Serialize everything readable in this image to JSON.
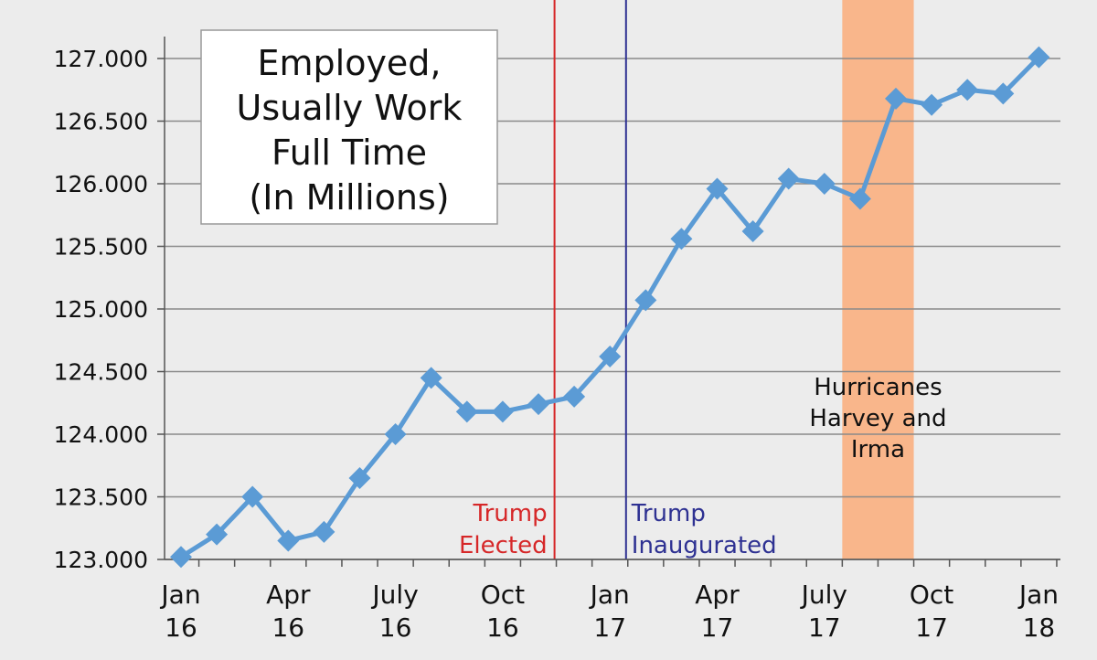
{
  "chart_data": {
    "type": "line",
    "title": [
      "Employed,",
      "Usually Work",
      "Full Time",
      "(In Millions)"
    ],
    "xlabel": "",
    "ylabel": "",
    "ylim": [
      123.0,
      127.0
    ],
    "grid": true,
    "y_ticks": [
      "123.000",
      "123.500",
      "124.000",
      "124.500",
      "125.000",
      "125.500",
      "126.000",
      "126.500",
      "127.000"
    ],
    "x_ticks": [
      {
        "month": 0,
        "line1": "Jan",
        "line2": "16"
      },
      {
        "month": 3,
        "line1": "Apr",
        "line2": "16"
      },
      {
        "month": 6,
        "line1": "July",
        "line2": "16"
      },
      {
        "month": 9,
        "line1": "Oct",
        "line2": "16"
      },
      {
        "month": 12,
        "line1": "Jan",
        "line2": "17"
      },
      {
        "month": 15,
        "line1": "Apr",
        "line2": "17"
      },
      {
        "month": 18,
        "line1": "July",
        "line2": "17"
      },
      {
        "month": 21,
        "line1": "Oct",
        "line2": "17"
      },
      {
        "month": 24,
        "line1": "Jan",
        "line2": "18"
      }
    ],
    "categories": [
      "Jan 16",
      "Feb 16",
      "Mar 16",
      "Apr 16",
      "May 16",
      "Jun 16",
      "Jul 16",
      "Aug 16",
      "Sep 16",
      "Oct 16",
      "Nov 16",
      "Dec 16",
      "Jan 17",
      "Feb 17",
      "Mar 17",
      "Apr 17",
      "May 17",
      "Jun 17",
      "Jul 17",
      "Aug 17",
      "Sep 17",
      "Oct 17",
      "Nov 17",
      "Dec 17",
      "Jan 18"
    ],
    "series": [
      {
        "values": [
          123.02,
          123.2,
          123.5,
          123.15,
          123.22,
          123.65,
          124.0,
          124.45,
          124.18,
          124.18,
          124.24,
          124.3,
          124.62,
          125.07,
          125.56,
          125.96,
          125.62,
          126.04,
          126.0,
          125.88,
          126.68,
          126.63,
          126.75,
          126.72,
          127.01
        ],
        "color": "#5b9bd5"
      }
    ],
    "annotations": [
      {
        "type": "vline",
        "month": 10.45,
        "color": "#d62728",
        "label": [
          "Trump",
          "Elected"
        ]
      },
      {
        "type": "vline",
        "month": 12.45,
        "color": "#2e3192",
        "label": [
          "Trump",
          "Inaugurated"
        ]
      },
      {
        "type": "band",
        "from": 18.5,
        "to": 20.5,
        "color": "#f9b68b",
        "label": [
          "Hurricanes",
          "Harvey and",
          "Irma"
        ]
      }
    ]
  },
  "colors": {
    "background": "#ececec",
    "gridline": "#8a8a8a",
    "axis": "#555555",
    "line": "#5b9bd5"
  }
}
